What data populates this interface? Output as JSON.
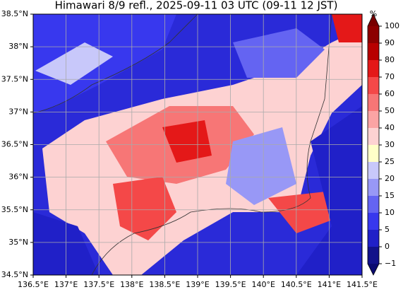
{
  "map": {
    "title": "Himawari 8/9 refl., 2025-09-11 03 UTC (09-11 12 JST)",
    "xlim": [
      136.5,
      141.5
    ],
    "ylim": [
      34.5,
      38.5
    ],
    "xticks": [
      {
        "value": 136.5,
        "label": "136.5°E"
      },
      {
        "value": 137,
        "label": "137°E"
      },
      {
        "value": 137.5,
        "label": "137.5°E"
      },
      {
        "value": 138,
        "label": "138°E"
      },
      {
        "value": 138.5,
        "label": "138.5°E"
      },
      {
        "value": 139,
        "label": "139°E"
      },
      {
        "value": 139.5,
        "label": "139.5°E"
      },
      {
        "value": 140,
        "label": "140°E"
      },
      {
        "value": 140.5,
        "label": "140.5°E"
      },
      {
        "value": 141,
        "label": "141°E"
      },
      {
        "value": 141.5,
        "label": "141.5°E"
      }
    ],
    "yticks": [
      {
        "value": 34.5,
        "label": "34.5°N"
      },
      {
        "value": 35,
        "label": "35°N"
      },
      {
        "value": 35.5,
        "label": "35.5°N"
      },
      {
        "value": 36,
        "label": "36°N"
      },
      {
        "value": 36.5,
        "label": "36.5°N"
      },
      {
        "value": 37,
        "label": "37°N"
      },
      {
        "value": 37.5,
        "label": "37.5°N"
      },
      {
        "value": 38,
        "label": "38°N"
      },
      {
        "value": 38.5,
        "label": "38.5°N"
      }
    ],
    "grid": true,
    "colorbar": {
      "label": "%",
      "levels": [
        {
          "value": -1,
          "label": "−1"
        },
        0,
        5,
        10,
        15,
        20,
        25,
        30,
        40,
        50,
        60,
        70,
        80,
        90,
        100
      ],
      "colors": [
        "#12128a",
        "#2020c8",
        "#3838ee",
        "#6464f2",
        "#9898f6",
        "#c8c8fa",
        "#ffffc8",
        "#fdd2d2",
        "#fba4a4",
        "#f77676",
        "#f44848",
        "#e41818",
        "#b80000",
        "#8c0000"
      ],
      "under_color": "#0a0a70",
      "over_color": "#780000"
    }
  }
}
